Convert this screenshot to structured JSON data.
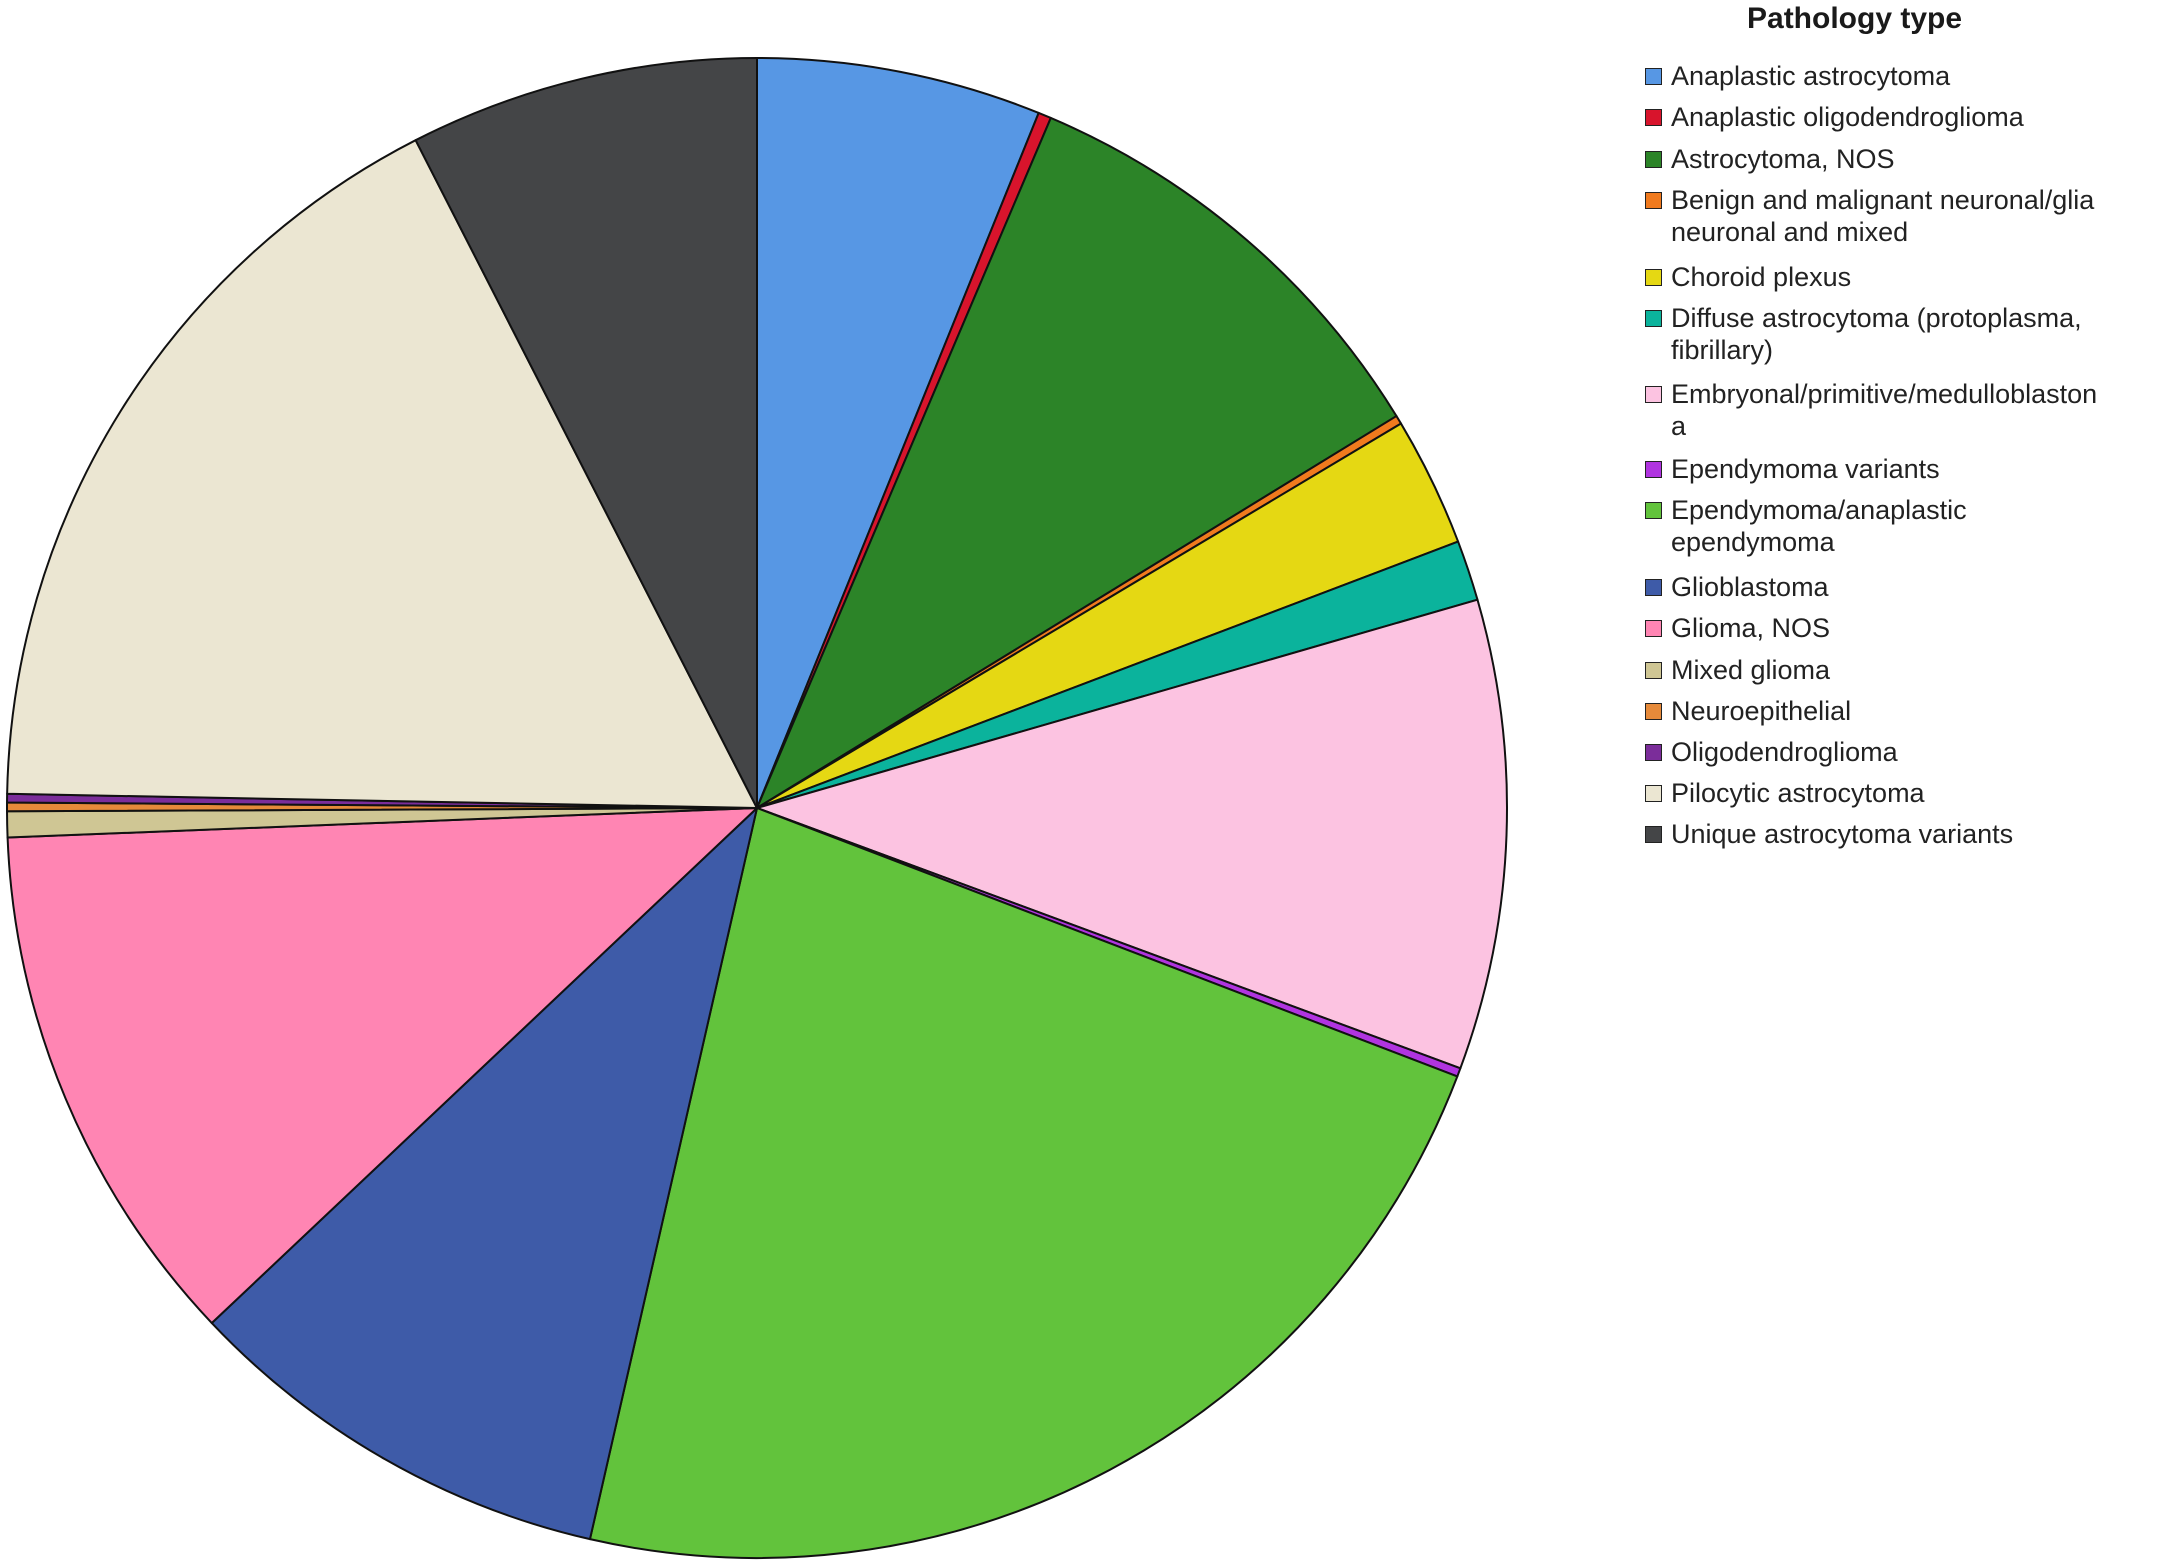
{
  "chart_data": {
    "type": "pie",
    "title": "",
    "legend_title": "Pathology type",
    "legend_position": "right",
    "slices": [
      {
        "label": "Anaplastic astrocytoma",
        "value": 6.6,
        "color": "#5797E4"
      },
      {
        "label": "Anaplastic oligodendroglioma",
        "value": 0.3,
        "color": "#D8142C"
      },
      {
        "label": "Astrocytoma, NOS",
        "value": 10.6,
        "color": "#2C8428"
      },
      {
        "label": "Benign and malignant neuronal/glial neuronal and mixed",
        "value": 0.2,
        "color": "#F07A1E"
      },
      {
        "label": "Choroid plexus",
        "value": 3.0,
        "color": "#E5D813"
      },
      {
        "label": "Diffuse astrocytoma (protoplasma, fibrillary)",
        "value": 1.4,
        "color": "#0BB39C"
      },
      {
        "label": "Embryonal/primitive/medulloblastoma",
        "value": 10.9,
        "color": "#FCC3E1"
      },
      {
        "label": "Ependymoma variants",
        "value": 0.2,
        "color": "#B034E0"
      },
      {
        "label": "Ependymoma/anaplastic ependymoma",
        "value": 24.5,
        "color": "#62C33C"
      },
      {
        "label": "Glioblastoma",
        "value": 10.1,
        "color": "#3E5BA8"
      },
      {
        "label": "Glioma, NOS",
        "value": 12.3,
        "color": "#FF85B3"
      },
      {
        "label": "Mixed glioma",
        "value": 0.6,
        "color": "#CFC694"
      },
      {
        "label": "Neuroepithelial",
        "value": 0.2,
        "color": "#E68A3A"
      },
      {
        "label": "Oligodendroglioma",
        "value": 0.2,
        "color": "#7B2D9A"
      },
      {
        "label": "Pilocytic astrocytoma",
        "value": 18.5,
        "color": "#EBE6D2"
      },
      {
        "label": "Unique astrocytoma variants",
        "value": 8.1,
        "color": "#444547"
      }
    ]
  },
  "legend": {
    "title": "Pathology type",
    "items": [
      {
        "line1": "Anaplastic astrocytoma",
        "line2": ""
      },
      {
        "line1": "Anaplastic oligodendroglioma",
        "line2": ""
      },
      {
        "line1": "Astrocytoma, NOS",
        "line2": ""
      },
      {
        "line1": "Benign and malignant neuronal/glia",
        "line2": "neuronal and mixed"
      },
      {
        "line1": "Choroid plexus",
        "line2": ""
      },
      {
        "line1": "Diffuse astrocytoma (protoplasma,",
        "line2": "fibrillary)"
      },
      {
        "line1": "Embryonal/primitive/medulloblaston",
        "line2": "a"
      },
      {
        "line1": "Ependymoma variants",
        "line2": ""
      },
      {
        "line1": "Ependymoma/anaplastic",
        "line2": "ependymoma"
      },
      {
        "line1": "Glioblastoma",
        "line2": ""
      },
      {
        "line1": "Glioma, NOS",
        "line2": ""
      },
      {
        "line1": "Mixed glioma",
        "line2": ""
      },
      {
        "line1": "Neuroepithelial",
        "line2": ""
      },
      {
        "line1": "Oligodendroglioma",
        "line2": ""
      },
      {
        "line1": "Pilocytic astrocytoma",
        "line2": ""
      },
      {
        "line1": "Unique astrocytoma variants",
        "line2": ""
      }
    ]
  }
}
